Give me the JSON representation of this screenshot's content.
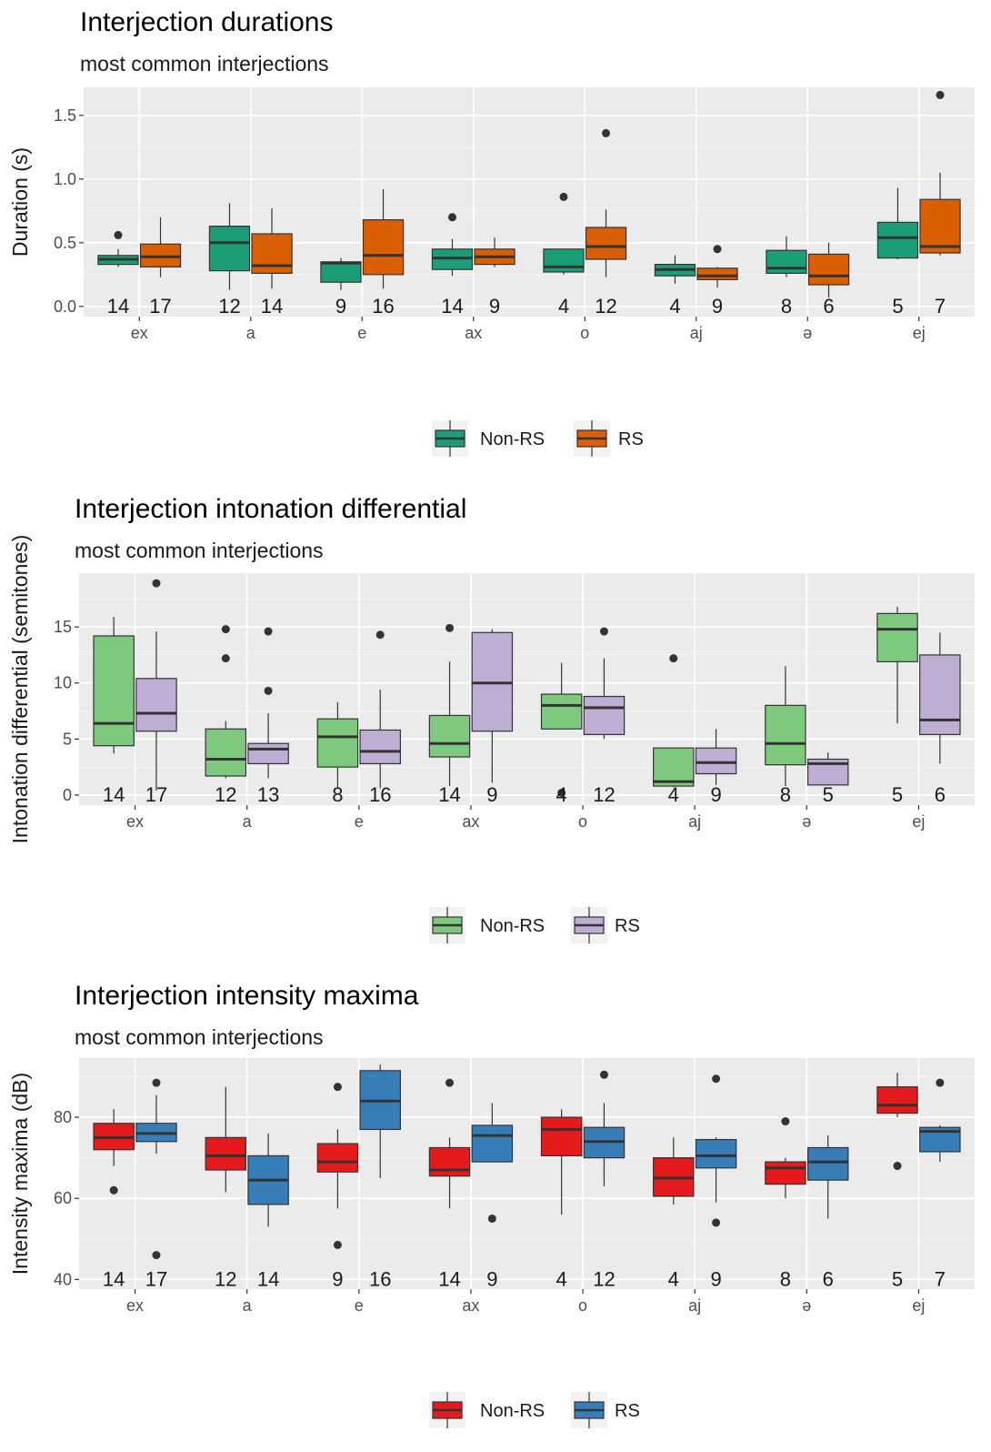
{
  "chart_data": [
    {
      "type": "box",
      "title": "Interjection durations",
      "subtitle": "most common interjections",
      "xlabel": "",
      "ylabel": "Duration (s)",
      "ylim": [
        -0.08,
        1.72
      ],
      "yticks": [
        0.0,
        0.5,
        1.0,
        1.5
      ],
      "ytick_labels": [
        "0.0",
        "0.5",
        "1.0",
        "1.5"
      ],
      "count_y": 0.0,
      "categories": [
        "ex",
        "a",
        "e",
        "ax",
        "o",
        "aj",
        "ə",
        "ej"
      ],
      "series": [
        {
          "name": "Non-RS",
          "color": "#1b9e77",
          "counts": [
            "14",
            "12",
            "9",
            "14",
            "4",
            "4",
            "8",
            "5"
          ],
          "boxes": [
            {
              "lw": 0.31,
              "q1": 0.33,
              "median": 0.37,
              "q3": 0.4,
              "uw": 0.45,
              "out": [
                0.56
              ]
            },
            {
              "lw": 0.13,
              "q1": 0.28,
              "median": 0.5,
              "q3": 0.63,
              "uw": 0.81,
              "out": []
            },
            {
              "lw": 0.13,
              "q1": 0.19,
              "median": 0.34,
              "q3": 0.35,
              "uw": 0.38,
              "out": []
            },
            {
              "lw": 0.24,
              "q1": 0.29,
              "median": 0.38,
              "q3": 0.45,
              "uw": 0.53,
              "out": [
                0.7
              ]
            },
            {
              "lw": 0.25,
              "q1": 0.27,
              "median": 0.31,
              "q3": 0.45,
              "uw": 0.45,
              "out": [
                0.86
              ]
            },
            {
              "lw": 0.18,
              "q1": 0.24,
              "median": 0.29,
              "q3": 0.33,
              "uw": 0.4,
              "out": []
            },
            {
              "lw": 0.23,
              "q1": 0.26,
              "median": 0.3,
              "q3": 0.44,
              "uw": 0.55,
              "out": []
            },
            {
              "lw": 0.37,
              "q1": 0.38,
              "median": 0.54,
              "q3": 0.66,
              "uw": 0.93,
              "out": []
            }
          ]
        },
        {
          "name": "RS",
          "color": "#d95f02",
          "counts": [
            "17",
            "14",
            "16",
            "9",
            "12",
            "9",
            "6",
            "7"
          ],
          "boxes": [
            {
              "lw": 0.23,
              "q1": 0.31,
              "median": 0.39,
              "q3": 0.49,
              "uw": 0.7,
              "out": []
            },
            {
              "lw": 0.14,
              "q1": 0.26,
              "median": 0.32,
              "q3": 0.57,
              "uw": 0.77,
              "out": []
            },
            {
              "lw": 0.14,
              "q1": 0.25,
              "median": 0.4,
              "q3": 0.68,
              "uw": 0.92,
              "out": []
            },
            {
              "lw": 0.31,
              "q1": 0.33,
              "median": 0.39,
              "q3": 0.45,
              "uw": 0.54,
              "out": []
            },
            {
              "lw": 0.23,
              "q1": 0.37,
              "median": 0.47,
              "q3": 0.62,
              "uw": 0.76,
              "out": [
                1.36
              ]
            },
            {
              "lw": 0.15,
              "q1": 0.21,
              "median": 0.24,
              "q3": 0.3,
              "uw": 0.31,
              "out": [
                0.45
              ]
            },
            {
              "lw": 0.07,
              "q1": 0.17,
              "median": 0.24,
              "q3": 0.41,
              "uw": 0.5,
              "out": []
            },
            {
              "lw": 0.4,
              "q1": 0.42,
              "median": 0.47,
              "q3": 0.84,
              "uw": 1.05,
              "out": [
                1.66
              ]
            }
          ]
        }
      ],
      "legend": {
        "position": "bottom",
        "labels": [
          "Non-RS",
          "RS"
        ]
      }
    },
    {
      "type": "box",
      "title": "Interjection intonation differential",
      "subtitle": "most common interjections",
      "xlabel": "",
      "ylabel": "Intonation differential (semitones)",
      "ylim": [
        -0.9,
        19.8
      ],
      "yticks": [
        0,
        5,
        10,
        15
      ],
      "ytick_labels": [
        "0",
        "5",
        "10",
        "15"
      ],
      "count_y": 0.0,
      "categories": [
        "ex",
        "a",
        "e",
        "ax",
        "o",
        "aj",
        "ə",
        "ej"
      ],
      "series": [
        {
          "name": "Non-RS",
          "color": "#7fc97f",
          "counts": [
            "14",
            "12",
            "8",
            "14",
            "4",
            "4",
            "8",
            "5"
          ],
          "boxes": [
            {
              "lw": 3.7,
              "q1": 4.4,
              "median": 6.4,
              "q3": 14.2,
              "uw": 15.9,
              "out": []
            },
            {
              "lw": 1.5,
              "q1": 1.7,
              "median": 3.2,
              "q3": 5.9,
              "uw": 6.6,
              "out": [
                12.2,
                14.8
              ]
            },
            {
              "lw": 0.6,
              "q1": 2.5,
              "median": 5.2,
              "q3": 6.8,
              "uw": 8.3,
              "out": []
            },
            {
              "lw": 0.8,
              "q1": 3.4,
              "median": 4.6,
              "q3": 7.1,
              "uw": 11.9,
              "out": [
                14.9
              ]
            },
            {
              "lw": 5.9,
              "q1": 5.9,
              "median": 8.0,
              "q3": 9.0,
              "uw": 11.8,
              "out": [
                0.2
              ]
            },
            {
              "lw": 0.7,
              "q1": 0.8,
              "median": 1.2,
              "q3": 4.2,
              "uw": 4.2,
              "out": [
                12.2
              ]
            },
            {
              "lw": 0.8,
              "q1": 2.7,
              "median": 4.6,
              "q3": 8.0,
              "uw": 11.5,
              "out": []
            },
            {
              "lw": 6.4,
              "q1": 11.9,
              "median": 14.8,
              "q3": 16.2,
              "uw": 16.8,
              "out": []
            }
          ]
        },
        {
          "name": "RS",
          "color": "#beaed4",
          "counts": [
            "17",
            "13",
            "16",
            "9",
            "12",
            "9",
            "5",
            "6"
          ],
          "boxes": [
            {
              "lw": 0.4,
              "q1": 5.7,
              "median": 7.3,
              "q3": 10.4,
              "uw": 14.6,
              "out": [
                18.9
              ]
            },
            {
              "lw": 1.5,
              "q1": 2.8,
              "median": 4.1,
              "q3": 4.6,
              "uw": 7.3,
              "out": [
                9.3,
                14.6
              ]
            },
            {
              "lw": 0.6,
              "q1": 2.8,
              "median": 3.9,
              "q3": 5.8,
              "uw": 9.4,
              "out": [
                14.3
              ]
            },
            {
              "lw": 1.1,
              "q1": 5.7,
              "median": 10.0,
              "q3": 14.5,
              "uw": 14.8,
              "out": []
            },
            {
              "lw": 5.0,
              "q1": 5.4,
              "median": 7.8,
              "q3": 8.8,
              "uw": 12.2,
              "out": [
                14.6
              ]
            },
            {
              "lw": 0.9,
              "q1": 1.9,
              "median": 2.9,
              "q3": 4.2,
              "uw": 5.9,
              "out": []
            },
            {
              "lw": 0.9,
              "q1": 0.9,
              "median": 2.8,
              "q3": 3.2,
              "uw": 3.8,
              "out": []
            },
            {
              "lw": 2.8,
              "q1": 5.4,
              "median": 6.7,
              "q3": 12.5,
              "uw": 14.5,
              "out": []
            }
          ]
        }
      ],
      "legend": {
        "position": "bottom",
        "labels": [
          "Non-RS",
          "RS"
        ]
      }
    },
    {
      "type": "box",
      "title": "Interjection intensity maxima",
      "subtitle": "most common interjections",
      "xlabel": "",
      "ylabel": "Intensity maxima (dB)",
      "ylim": [
        37.6,
        94.6
      ],
      "yticks": [
        40,
        60,
        80
      ],
      "ytick_labels": [
        "40",
        "60",
        "80"
      ],
      "count_y": 40.0,
      "categories": [
        "ex",
        "a",
        "e",
        "ax",
        "o",
        "aj",
        "ə",
        "ej"
      ],
      "series": [
        {
          "name": "Non-RS",
          "color": "#e41a1c",
          "counts": [
            "14",
            "12",
            "9",
            "14",
            "4",
            "4",
            "8",
            "5"
          ],
          "boxes": [
            {
              "lw": 68.0,
              "q1": 72.0,
              "median": 75.0,
              "q3": 78.5,
              "uw": 82.0,
              "out": [
                62.0
              ]
            },
            {
              "lw": 61.5,
              "q1": 67.0,
              "median": 70.5,
              "q3": 75.0,
              "uw": 87.5,
              "out": []
            },
            {
              "lw": 57.5,
              "q1": 66.5,
              "median": 69.0,
              "q3": 73.5,
              "uw": 77.0,
              "out": [
                87.5,
                48.5
              ]
            },
            {
              "lw": 57.5,
              "q1": 65.5,
              "median": 67.0,
              "q3": 72.5,
              "uw": 75.0,
              "out": [
                88.5
              ]
            },
            {
              "lw": 56.0,
              "q1": 70.5,
              "median": 77.0,
              "q3": 80.0,
              "uw": 82.0,
              "out": []
            },
            {
              "lw": 58.5,
              "q1": 60.5,
              "median": 65.0,
              "q3": 70.0,
              "uw": 75.0,
              "out": []
            },
            {
              "lw": 60.0,
              "q1": 63.5,
              "median": 67.5,
              "q3": 69.0,
              "uw": 70.0,
              "out": [
                79.0
              ]
            },
            {
              "lw": 80.0,
              "q1": 81.0,
              "median": 83.0,
              "q3": 87.5,
              "uw": 91.0,
              "out": [
                68.0
              ]
            }
          ]
        },
        {
          "name": "RS",
          "color": "#377eb8",
          "counts": [
            "17",
            "14",
            "16",
            "9",
            "12",
            "9",
            "6",
            "7"
          ],
          "boxes": [
            {
              "lw": 71.0,
              "q1": 74.0,
              "median": 76.0,
              "q3": 78.5,
              "uw": 85.5,
              "out": [
                88.5,
                46.0
              ]
            },
            {
              "lw": 53.0,
              "q1": 58.5,
              "median": 64.5,
              "q3": 70.5,
              "uw": 76.0,
              "out": []
            },
            {
              "lw": 65.0,
              "q1": 77.0,
              "median": 84.0,
              "q3": 91.5,
              "uw": 93.0,
              "out": []
            },
            {
              "lw": 69.0,
              "q1": 69.0,
              "median": 75.5,
              "q3": 78.0,
              "uw": 83.5,
              "out": [
                55.0
              ]
            },
            {
              "lw": 63.0,
              "q1": 70.0,
              "median": 74.0,
              "q3": 77.5,
              "uw": 83.5,
              "out": [
                90.5
              ]
            },
            {
              "lw": 59.0,
              "q1": 67.5,
              "median": 70.5,
              "q3": 74.5,
              "uw": 75.0,
              "out": [
                89.5,
                54.0
              ]
            },
            {
              "lw": 55.0,
              "q1": 64.5,
              "median": 69.0,
              "q3": 72.5,
              "uw": 75.5,
              "out": []
            },
            {
              "lw": 69.0,
              "q1": 71.5,
              "median": 76.5,
              "q3": 77.5,
              "uw": 78.0,
              "out": [
                88.5
              ]
            }
          ]
        }
      ],
      "legend": {
        "position": "bottom",
        "labels": [
          "Non-RS",
          "RS"
        ]
      }
    }
  ]
}
